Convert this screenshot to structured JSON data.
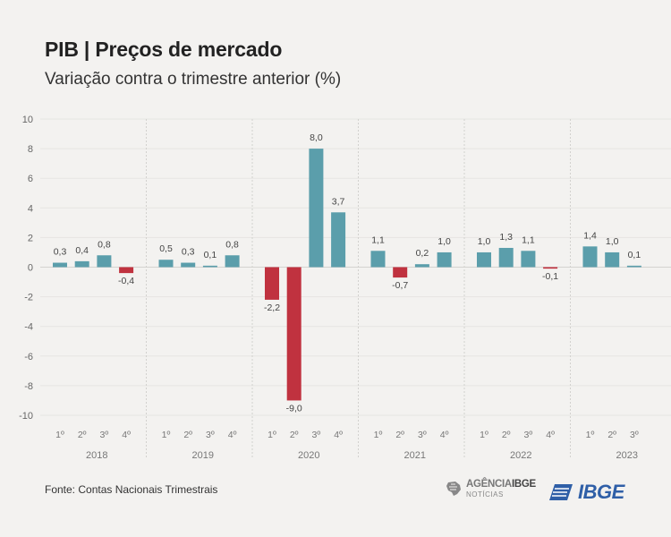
{
  "header": {
    "title": "PIB | Preços de mercado",
    "subtitle": "Variação contra o trimestre anterior (%)"
  },
  "footer": {
    "source": "Fonte: Contas Nacionais Trimestrais",
    "agencia_prefix": "AGÊNCIA",
    "agencia_brand": "IBGE",
    "agencia_sub": "NOTÍCIAS",
    "ibge_logo": "IBGE"
  },
  "colors": {
    "positive": "#5b9eab",
    "negative": "#c0323f",
    "background": "#f3f2f0"
  },
  "chart_data": {
    "type": "bar",
    "title": "PIB | Preços de mercado",
    "subtitle": "Variação contra o trimestre anterior (%)",
    "ylabel": "",
    "xlabel": "",
    "ylim": [
      -10,
      10
    ],
    "yticks": [
      10,
      8,
      6,
      4,
      2,
      0,
      -2,
      -4,
      -6,
      -8,
      -10
    ],
    "grid": true,
    "groups": [
      {
        "year": "2018",
        "quarters": [
          "1º",
          "2º",
          "3º",
          "4º"
        ],
        "values": [
          0.3,
          0.4,
          0.8,
          -0.4
        ],
        "labels": [
          "0,3",
          "0,4",
          "0,8",
          "-0,4"
        ]
      },
      {
        "year": "2019",
        "quarters": [
          "1º",
          "2º",
          "3º",
          "4º"
        ],
        "values": [
          0.5,
          0.3,
          0.1,
          0.8
        ],
        "labels": [
          "0,5",
          "0,3",
          "0,1",
          "0,8"
        ]
      },
      {
        "year": "2020",
        "quarters": [
          "1º",
          "2º",
          "3º",
          "4º"
        ],
        "values": [
          -2.2,
          -9.0,
          8.0,
          3.7
        ],
        "labels": [
          "-2,2",
          "-9,0",
          "8,0",
          "3,7"
        ]
      },
      {
        "year": "2021",
        "quarters": [
          "1º",
          "2º",
          "3º",
          "4º"
        ],
        "values": [
          1.1,
          -0.7,
          0.2,
          1.0
        ],
        "labels": [
          "1,1",
          "-0,7",
          "0,2",
          "1,0"
        ]
      },
      {
        "year": "2022",
        "quarters": [
          "1º",
          "2º",
          "3º",
          "4º"
        ],
        "values": [
          1.0,
          1.3,
          1.1,
          -0.1
        ],
        "labels": [
          "1,0",
          "1,3",
          "1,1",
          "-0,1"
        ]
      },
      {
        "year": "2023",
        "quarters": [
          "1º",
          "2º",
          "3º"
        ],
        "values": [
          1.4,
          1.0,
          0.1
        ],
        "labels": [
          "1,4",
          "1,0",
          "0,1"
        ]
      }
    ]
  }
}
